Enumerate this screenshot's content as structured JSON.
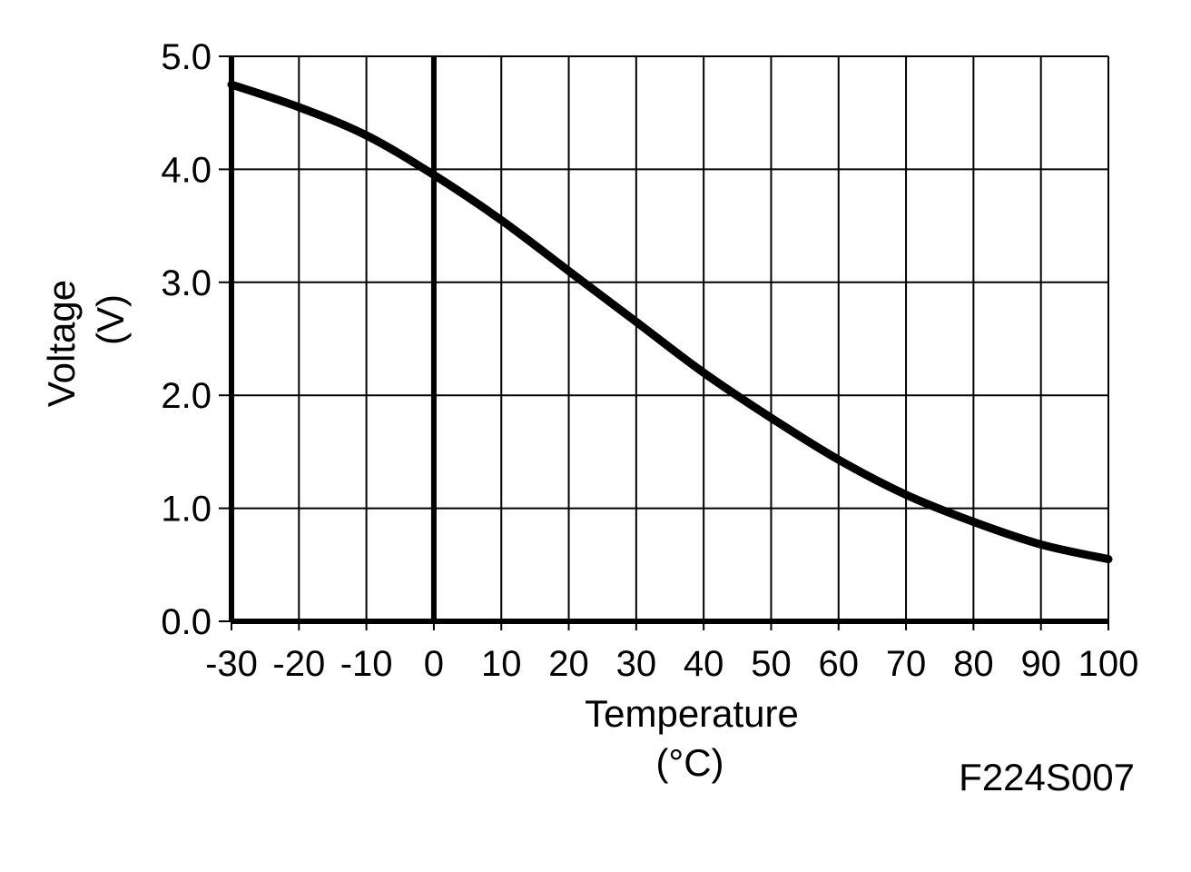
{
  "chart_data": {
    "type": "line",
    "xlabel": "Temperature",
    "xunit": "(°C)",
    "ylabel": "Voltage",
    "yunit": "(V)",
    "xlim": [
      -30,
      100
    ],
    "ylim": [
      0.0,
      5.0
    ],
    "xticks": [
      -30,
      -20,
      -10,
      0,
      10,
      20,
      30,
      40,
      50,
      60,
      70,
      80,
      90,
      100
    ],
    "xtick_labels": [
      "-30",
      "-20",
      "-10",
      "0",
      "10",
      "20",
      "30",
      "40",
      "50",
      "60",
      "70",
      "80",
      "90",
      "100"
    ],
    "yticks": [
      0,
      1,
      2,
      3,
      4,
      5
    ],
    "ytick_labels": [
      "0.0",
      "1.0",
      "2.0",
      "3.0",
      "4.0",
      "5.0"
    ],
    "grid": true,
    "figure_id": "F224S007",
    "series": [
      {
        "x": [
          -30,
          -20,
          -10,
          0,
          10,
          20,
          30,
          40,
          50,
          60,
          70,
          80,
          90,
          100
        ],
        "y": [
          4.75,
          4.55,
          4.3,
          3.95,
          3.55,
          3.1,
          2.65,
          2.2,
          1.8,
          1.43,
          1.12,
          0.88,
          0.68,
          0.55
        ]
      }
    ]
  },
  "colors": {
    "line": "#000000",
    "grid": "#000000",
    "background": "#ffffff"
  }
}
